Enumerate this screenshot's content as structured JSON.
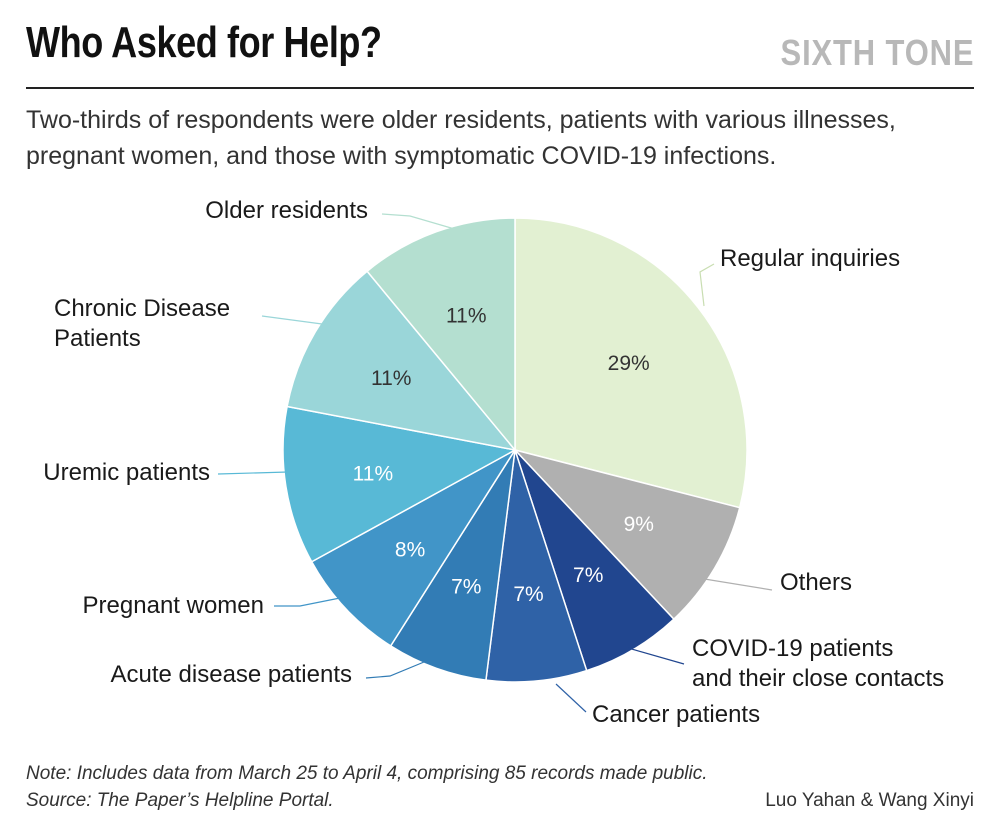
{
  "header": {
    "title": "Who Asked for Help?",
    "brand": "SIXTH TONE",
    "subtitle": "Two-thirds of respondents were older residents, patients with various illnesses, pregnant women, and those with symptomatic COVID-19 infections."
  },
  "chart_data": {
    "type": "pie",
    "start": "12 o'clock",
    "direction": "clockwise",
    "slices": [
      {
        "label": "Regular inquiries",
        "value": 29,
        "value_label": "29%",
        "color": "#e2f0d2",
        "text_color": "#333333"
      },
      {
        "label": "Others",
        "value": 9,
        "value_label": "9%",
        "color": "#b0b0b0",
        "text_color": "#ffffff"
      },
      {
        "label": "COVID-19 patients and their close contacts",
        "label_lines": [
          "COVID-19 patients",
          "and their close contacts"
        ],
        "value": 7,
        "value_label": "7%",
        "color": "#21468f",
        "text_color": "#ffffff"
      },
      {
        "label": "Cancer patients",
        "value": 7,
        "value_label": "7%",
        "color": "#2f62a7",
        "text_color": "#ffffff"
      },
      {
        "label": "Acute disease patients",
        "value": 7,
        "value_label": "7%",
        "color": "#327cb5",
        "text_color": "#ffffff"
      },
      {
        "label": "Pregnant women",
        "value": 8,
        "value_label": "8%",
        "color": "#4195c8",
        "text_color": "#ffffff"
      },
      {
        "label": "Uremic patients",
        "value": 11,
        "value_label": "11%",
        "color": "#58b9d6",
        "text_color": "#ffffff"
      },
      {
        "label": "Chronic Disease Patients",
        "label_lines": [
          "Chronic Disease",
          "Patients"
        ],
        "value": 11,
        "value_label": "11%",
        "color": "#9ad6d9",
        "text_color": "#333333"
      },
      {
        "label": "Older residents",
        "value": 11,
        "value_label": "11%",
        "color": "#b4dfd0",
        "text_color": "#333333"
      }
    ]
  },
  "footer": {
    "note": "Note: Includes data from March 25 to April 4, comprising 85  records made public.",
    "source": "Source: The Paper’s Helpline Portal.",
    "credit": "Luo Yahan & Wang Xinyi"
  }
}
